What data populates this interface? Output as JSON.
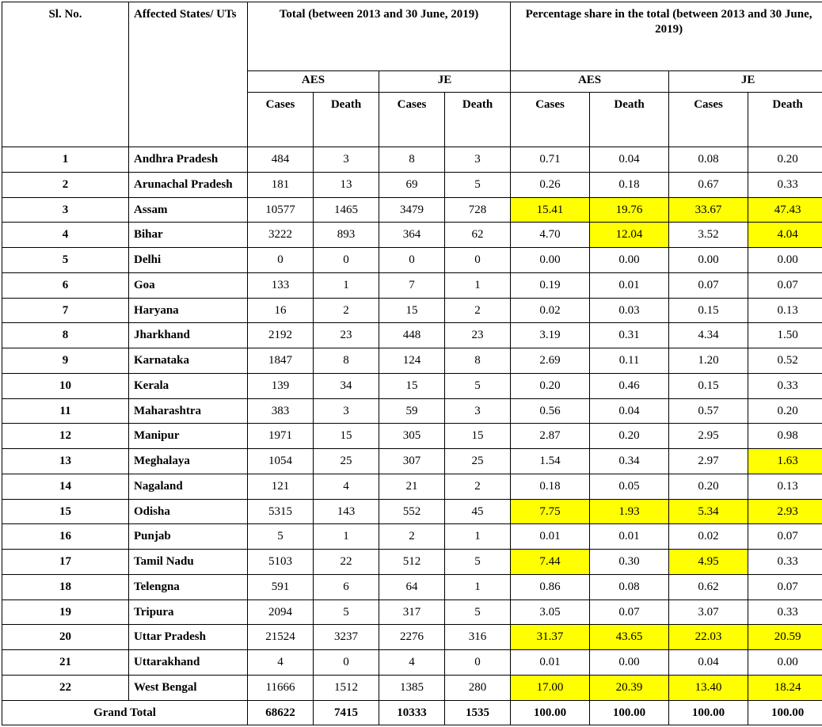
{
  "highlight_color": "#ffff00",
  "header": {
    "sl_no": "Sl. No.",
    "affected": "Affected States/ UTs",
    "total_group": "Total (between 2013 and 30 June, 2019)",
    "pct_group": "Percentage share in the total  (between 2013 and 30 June, 2019)",
    "aes": "AES",
    "je": "JE",
    "cases": "Cases",
    "death": "Death"
  },
  "grand_total_label": "Grand Total",
  "rows": [
    {
      "sl": "1",
      "state": "Andhra Pradesh",
      "tac": "484",
      "tad": "3",
      "tjc": "8",
      "tjd": "3",
      "pac": "0.71",
      "pad": "0.04",
      "pjc": "0.08",
      "pjd": "0.20",
      "hl": []
    },
    {
      "sl": "2",
      "state": "Arunachal Pradesh",
      "tac": "181",
      "tad": "13",
      "tjc": "69",
      "tjd": "5",
      "pac": "0.26",
      "pad": "0.18",
      "pjc": "0.67",
      "pjd": "0.33",
      "hl": []
    },
    {
      "sl": "3",
      "state": "Assam",
      "tac": "10577",
      "tad": "1465",
      "tjc": "3479",
      "tjd": "728",
      "pac": "15.41",
      "pad": "19.76",
      "pjc": "33.67",
      "pjd": "47.43",
      "hl": [
        "pac",
        "pad",
        "pjc",
        "pjd"
      ]
    },
    {
      "sl": "4",
      "state": "Bihar",
      "tac": "3222",
      "tad": "893",
      "tjc": "364",
      "tjd": "62",
      "pac": "4.70",
      "pad": "12.04",
      "pjc": "3.52",
      "pjd": "4.04",
      "hl": [
        "pad",
        "pjd"
      ]
    },
    {
      "sl": "5",
      "state": "Delhi",
      "tac": "0",
      "tad": "0",
      "tjc": "0",
      "tjd": "0",
      "pac": "0.00",
      "pad": "0.00",
      "pjc": "0.00",
      "pjd": "0.00",
      "hl": []
    },
    {
      "sl": "6",
      "state": "Goa",
      "tac": "133",
      "tad": "1",
      "tjc": "7",
      "tjd": "1",
      "pac": "0.19",
      "pad": "0.01",
      "pjc": "0.07",
      "pjd": "0.07",
      "hl": []
    },
    {
      "sl": "7",
      "state": "Haryana",
      "tac": "16",
      "tad": "2",
      "tjc": "15",
      "tjd": "2",
      "pac": "0.02",
      "pad": "0.03",
      "pjc": "0.15",
      "pjd": "0.13",
      "hl": []
    },
    {
      "sl": "8",
      "state": "Jharkhand",
      "tac": "2192",
      "tad": "23",
      "tjc": "448",
      "tjd": "23",
      "pac": "3.19",
      "pad": "0.31",
      "pjc": "4.34",
      "pjd": "1.50",
      "hl": []
    },
    {
      "sl": "9",
      "state": "Karnataka",
      "tac": "1847",
      "tad": "8",
      "tjc": "124",
      "tjd": "8",
      "pac": "2.69",
      "pad": "0.11",
      "pjc": "1.20",
      "pjd": "0.52",
      "hl": []
    },
    {
      "sl": "10",
      "state": "Kerala",
      "tac": "139",
      "tad": "34",
      "tjc": "15",
      "tjd": "5",
      "pac": "0.20",
      "pad": "0.46",
      "pjc": "0.15",
      "pjd": "0.33",
      "hl": []
    },
    {
      "sl": "11",
      "state": "Maharashtra",
      "tac": "383",
      "tad": "3",
      "tjc": "59",
      "tjd": "3",
      "pac": "0.56",
      "pad": "0.04",
      "pjc": "0.57",
      "pjd": "0.20",
      "hl": []
    },
    {
      "sl": "12",
      "state": "Manipur",
      "tac": "1971",
      "tad": "15",
      "tjc": "305",
      "tjd": "15",
      "pac": "2.87",
      "pad": "0.20",
      "pjc": "2.95",
      "pjd": "0.98",
      "hl": []
    },
    {
      "sl": "13",
      "state": "Meghalaya",
      "tac": "1054",
      "tad": "25",
      "tjc": "307",
      "tjd": "25",
      "pac": "1.54",
      "pad": "0.34",
      "pjc": "2.97",
      "pjd": "1.63",
      "hl": [
        "pjd"
      ]
    },
    {
      "sl": "14",
      "state": "Nagaland",
      "tac": "121",
      "tad": "4",
      "tjc": "21",
      "tjd": "2",
      "pac": "0.18",
      "pad": "0.05",
      "pjc": "0.20",
      "pjd": "0.13",
      "hl": []
    },
    {
      "sl": "15",
      "state": "Odisha",
      "tac": "5315",
      "tad": "143",
      "tjc": "552",
      "tjd": "45",
      "pac": "7.75",
      "pad": "1.93",
      "pjc": "5.34",
      "pjd": "2.93",
      "hl": [
        "pac",
        "pad",
        "pjc",
        "pjd"
      ]
    },
    {
      "sl": "16",
      "state": "Punjab",
      "tac": "5",
      "tad": "1",
      "tjc": "2",
      "tjd": "1",
      "pac": "0.01",
      "pad": "0.01",
      "pjc": "0.02",
      "pjd": "0.07",
      "hl": []
    },
    {
      "sl": "17",
      "state": "Tamil Nadu",
      "tac": "5103",
      "tad": "22",
      "tjc": "512",
      "tjd": "5",
      "pac": "7.44",
      "pad": "0.30",
      "pjc": "4.95",
      "pjd": "0.33",
      "hl": [
        "pac",
        "pjc"
      ]
    },
    {
      "sl": "18",
      "state": "Telengna",
      "tac": "591",
      "tad": "6",
      "tjc": "64",
      "tjd": "1",
      "pac": "0.86",
      "pad": "0.08",
      "pjc": "0.62",
      "pjd": "0.07",
      "hl": []
    },
    {
      "sl": "19",
      "state": "Tripura",
      "tac": "2094",
      "tad": "5",
      "tjc": "317",
      "tjd": "5",
      "pac": "3.05",
      "pad": "0.07",
      "pjc": "3.07",
      "pjd": "0.33",
      "hl": []
    },
    {
      "sl": "20",
      "state": "Uttar Pradesh",
      "tac": "21524",
      "tad": "3237",
      "tjc": "2276",
      "tjd": "316",
      "pac": "31.37",
      "pad": "43.65",
      "pjc": "22.03",
      "pjd": "20.59",
      "hl": [
        "pac",
        "pad",
        "pjc",
        "pjd"
      ]
    },
    {
      "sl": "21",
      "state": "Uttarakhand",
      "tac": "4",
      "tad": "0",
      "tjc": "4",
      "tjd": "0",
      "pac": "0.01",
      "pad": "0.00",
      "pjc": "0.04",
      "pjd": "0.00",
      "hl": []
    },
    {
      "sl": "22",
      "state": "West Bengal",
      "tac": "11666",
      "tad": "1512",
      "tjc": "1385",
      "tjd": "280",
      "pac": "17.00",
      "pad": "20.39",
      "pjc": "13.40",
      "pjd": "18.24",
      "hl": [
        "pac",
        "pad",
        "pjc",
        "pjd"
      ]
    }
  ],
  "grand_total": {
    "tac": "68622",
    "tad": "7415",
    "tjc": "10333",
    "tjd": "1535",
    "pac": "100.00",
    "pad": "100.00",
    "pjc": "100.00",
    "pjd": "100.00"
  }
}
